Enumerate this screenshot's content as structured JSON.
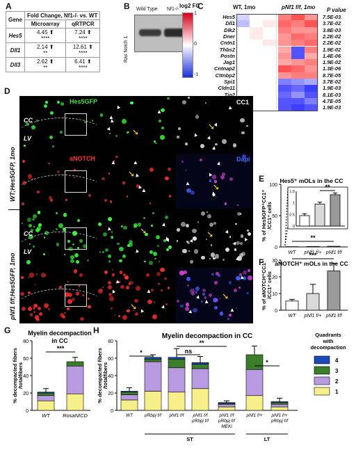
{
  "panels": {
    "A": "A",
    "B": "B",
    "C": "C",
    "D": "D",
    "E": "E",
    "F": "F",
    "G": "G",
    "H": "H"
  },
  "panelA": {
    "header_top": "Fold Change, Nf1-/- vs. WT",
    "col_gene": "Gene",
    "col_micro": "Microarray",
    "col_qrt": "qRTPCR",
    "rows": [
      {
        "gene": "Hes5",
        "micro": "4.45",
        "micro_sig": "****",
        "qrt": "7.24",
        "qrt_sig": "****"
      },
      {
        "gene": "Dll1",
        "micro": "2.14",
        "micro_sig": "**",
        "qrt": "12.61",
        "qrt_sig": "****"
      },
      {
        "gene": "Dll3",
        "micro": "2.62",
        "micro_sig": "**",
        "qrt": "6.41",
        "qrt_sig": "****"
      }
    ],
    "arrow": "⬆"
  },
  "panelB": {
    "wt": "Wild Type",
    "ko": "Nf1-/-",
    "ylabel": "Ras Notch 1"
  },
  "panelC": {
    "legend_title": "log2 FC",
    "legend_max": "1",
    "legend_zero": "0",
    "legend_min": "-1",
    "col_wt": "WT, 1mo",
    "col_ko": "pNf1 f/f, 1mo",
    "col_p": "P value",
    "genes": [
      "Hes5",
      "Dll1",
      "Dlk2",
      "Dner",
      "Cntn1",
      "Thbs2",
      "Postn",
      "Jag1",
      "Cntnap2",
      "Cttnbp2",
      "Spi1",
      "Cldn11",
      "Tjp2",
      "Gjb2",
      "Gjb6"
    ],
    "pvalues": [
      "7.5E-03",
      "3.7E-02",
      "3.8E-03",
      "2.2E-02",
      "2.2E-02",
      "1.9E-02",
      "1.4E-06",
      "1.9E-02",
      "1.3E-06",
      "8.7E-05",
      "3.7E-02",
      "1.9E-03",
      "8.1E-03",
      "4.7E-05",
      "1.9E-03"
    ],
    "matrix": [
      [
        -0.2,
        0,
        0,
        0.6,
        0.8,
        0.5
      ],
      [
        -0.3,
        0,
        0.1,
        0.7,
        0.6,
        0.8
      ],
      [
        0,
        0.1,
        0,
        0.6,
        0.5,
        0.5
      ],
      [
        0,
        0.1,
        0,
        0.5,
        0.7,
        0.6
      ],
      [
        0,
        0,
        0.1,
        0.5,
        0.6,
        0.7
      ],
      [
        0,
        0,
        0,
        0.4,
        -0.8,
        0.6
      ],
      [
        0,
        0,
        0,
        0.5,
        -0.8,
        0.4
      ],
      [
        0,
        0,
        0,
        0.4,
        0.5,
        0.6
      ],
      [
        0,
        0,
        0,
        0.8,
        0.7,
        0.5
      ],
      [
        0,
        0,
        0,
        0.5,
        0.6,
        0.6
      ],
      [
        0,
        0,
        0,
        -0.6,
        -0.5,
        -0.4
      ],
      [
        0,
        0,
        0,
        -0.8,
        -0.7,
        -0.9
      ],
      [
        0,
        0,
        0,
        -0.7,
        -0.5,
        -0.8
      ],
      [
        0,
        0,
        0,
        -0.8,
        -0.8,
        -0.6
      ],
      [
        0,
        0,
        0,
        -0.8,
        -0.9,
        -0.8
      ]
    ]
  },
  "panelD": {
    "row1_label": "WT;Hes5GFP, 1mo",
    "row2_label": "pNf1 f/f;Hes5GFP, 1mo",
    "hes5gfp": "Hes5GFP",
    "cc1": "CC1",
    "anotch": "aNOTCH",
    "dapi": "Dapi",
    "cc": "CC",
    "lv": "LV"
  },
  "chart_data": [
    {
      "panel": "E",
      "type": "bar",
      "title": "Hes5⁺ mOLs in the CC",
      "ylabel": "% of Hes5GFP⁺CC1⁺ /CC1⁺ cells",
      "categories": [
        "WT",
        "pNf1 f/+",
        "pNf1 f/f"
      ],
      "values": [
        0.4,
        0.65,
        1.0
      ],
      "errors": [
        0.05,
        0.08,
        0.1
      ],
      "ylim": [
        0,
        100
      ],
      "inset": {
        "values": [
          0.45,
          0.95,
          1.35
        ],
        "errors": [
          0.08,
          0.08,
          0.08
        ],
        "ylim": [
          0,
          1.5
        ],
        "yticks": [
          "0",
          "0.5",
          "1",
          "1.5"
        ],
        "significance": "**"
      },
      "yticks": [
        "0",
        "50",
        "100"
      ],
      "significance": "**"
    },
    {
      "panel": "F",
      "type": "bar",
      "title": "aNOTCH⁺ mOLs in the CC",
      "ylabel": "% of aNOTCH⁺CC1⁺ /CC1⁺ cells",
      "categories": [
        "WT",
        "pNf1 f/+",
        "pNf1 f/f"
      ],
      "values": [
        5.5,
        10,
        23.5
      ],
      "errors": [
        1,
        5.5,
        4.5
      ],
      "ylim": [
        0,
        30
      ],
      "yticks": [
        "0",
        "10",
        "20",
        "30"
      ],
      "significance": "***"
    },
    {
      "panel": "G",
      "type": "bar",
      "title": "Myelin decompaction in CC",
      "ylabel": "% decompacted fibers /totalfibers",
      "categories": [
        "WT",
        "RosaNICD"
      ],
      "series": [
        {
          "name": "1",
          "values": [
            11,
            19
          ]
        },
        {
          "name": "2",
          "values": [
            6,
            32
          ]
        },
        {
          "name": "3",
          "values": [
            3,
            5
          ]
        },
        {
          "name": "4",
          "values": [
            1,
            0
          ]
        }
      ],
      "errors": [
        4,
        5
      ],
      "ylim": [
        0,
        80
      ],
      "yticks": [
        "0",
        "20",
        "40",
        "60",
        "80"
      ],
      "significance": "***"
    },
    {
      "panel": "H",
      "type": "bar",
      "title": "Myelin decompaction in CC",
      "ylabel": "% decompacted fibers /totalfibers",
      "categories": [
        "WT",
        "pRbpj f/f",
        "pNf1 f/f",
        "pNf1 f/f pRbpj f/f",
        "pNf1 f/f pRbpj f/f MEKi",
        "pNf1 f/+",
        "pNf1 f/+ pRbpj f/f"
      ],
      "series": [
        {
          "name": "1",
          "values": [
            12,
            22,
            21,
            25,
            4,
            17,
            4
          ]
        },
        {
          "name": "2",
          "values": [
            6,
            34,
            28,
            23,
            3,
            30,
            3
          ]
        },
        {
          "name": "3",
          "values": [
            3,
            3,
            10,
            5,
            1,
            17,
            2
          ]
        },
        {
          "name": "4",
          "values": [
            1,
            2,
            2,
            2,
            1,
            0,
            1
          ]
        }
      ],
      "errors": [
        4,
        3,
        10,
        7,
        2,
        10,
        4
      ],
      "ylim": [
        0,
        80
      ],
      "yticks": [
        "0",
        "20",
        "40",
        "60",
        "80"
      ],
      "groups": [
        {
          "label": "ST",
          "from": 1,
          "to": 4
        },
        {
          "label": "LT",
          "from": 5,
          "to": 6
        }
      ],
      "comparisons": [
        {
          "from": 0,
          "to": 1,
          "label": "*"
        },
        {
          "from": 2,
          "to": 3,
          "label": "ns"
        },
        {
          "from": 2,
          "to": 4,
          "label": "**"
        },
        {
          "from": 5,
          "to": 6,
          "label": "*"
        }
      ],
      "legend_title": "Quadrants with decompaction",
      "legend_items": [
        "4",
        "3",
        "2",
        "1"
      ]
    }
  ],
  "colors": {
    "q1": "#f7f08a",
    "q2": "#b79ae0",
    "q3": "#3a7d2a",
    "q4": "#1b49b5",
    "bar_wt": "#ffffff",
    "bar_het": "#d9d9d9",
    "bar_ko": "#9a9a9a"
  }
}
